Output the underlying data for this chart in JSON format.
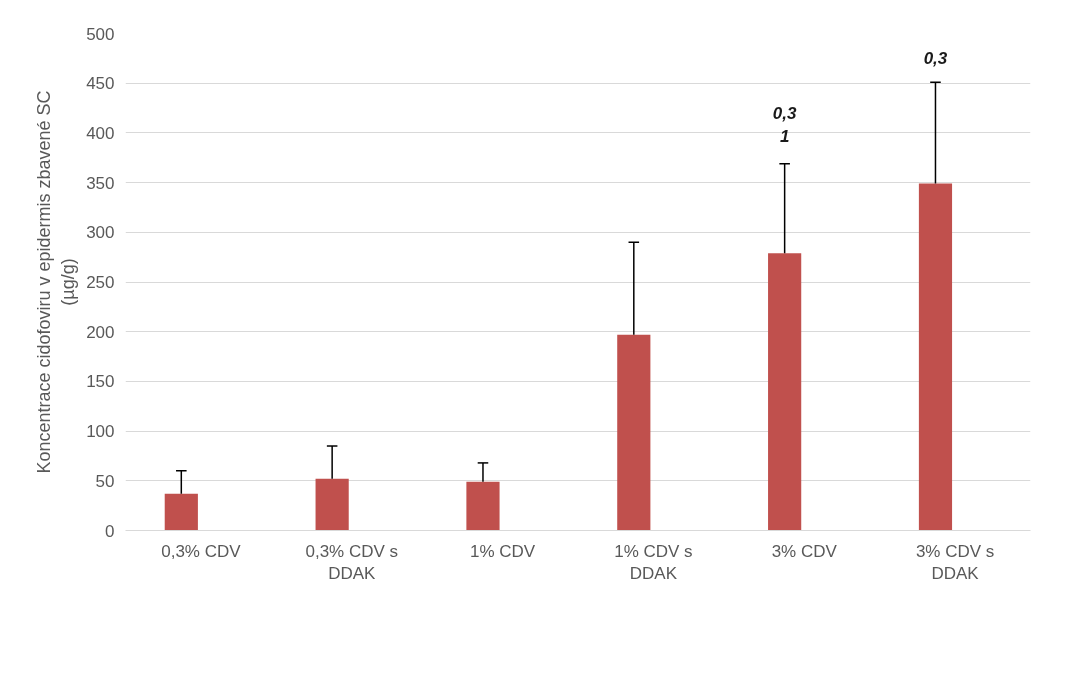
{
  "chart_data": {
    "type": "bar",
    "ylabel": "Koncentrace cidofoviru v epidermis zbavené SC\n(µg/g)",
    "categories": [
      "0,3% CDV",
      "0,3% CDV s DDAK",
      "1% CDV",
      "1% CDV s DDAK",
      "3% CDV",
      "3% CDV s DDAK"
    ],
    "values": [
      37,
      52,
      49,
      197,
      279,
      349
    ],
    "errors": [
      [
        37,
        60
      ],
      [
        52,
        85
      ],
      [
        49,
        68
      ],
      [
        197,
        290
      ],
      [
        279,
        369
      ],
      [
        349,
        451
      ]
    ],
    "color": "#c0504d",
    "ylim": [
      0,
      500
    ],
    "yticks": [
      0,
      50,
      100,
      150,
      200,
      250,
      300,
      350,
      400,
      450,
      500
    ],
    "grid": "y",
    "annotations": [
      "0,3\n1",
      "0,3"
    ]
  }
}
